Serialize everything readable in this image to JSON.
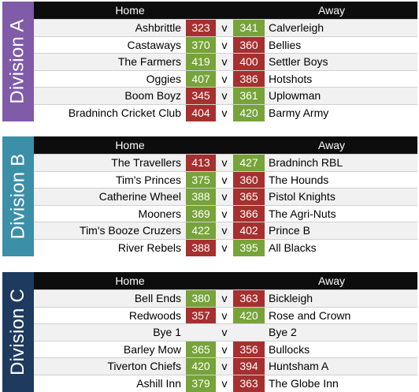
{
  "colors": {
    "win": "#77a33a",
    "lose": "#a5302f",
    "header_bg": "#0d0d0d"
  },
  "header": {
    "home": "Home",
    "away": "Away"
  },
  "separator": "v",
  "divisions": [
    {
      "name": "Division A",
      "color": "#7f5ba8",
      "matches": [
        {
          "home": "Ashbrittle",
          "home_score": "323",
          "away_score": "341",
          "away": "Calverleigh",
          "home_result": "lose",
          "away_result": "win"
        },
        {
          "home": "Castaways",
          "home_score": "370",
          "away_score": "360",
          "away": "Bellies",
          "home_result": "win",
          "away_result": "lose"
        },
        {
          "home": "The Farmers",
          "home_score": "419",
          "away_score": "400",
          "away": "Settler Boys",
          "home_result": "win",
          "away_result": "lose"
        },
        {
          "home": "Oggies",
          "home_score": "407",
          "away_score": "386",
          "away": "Hotshots",
          "home_result": "win",
          "away_result": "lose"
        },
        {
          "home": "Boom Boyz",
          "home_score": "345",
          "away_score": "361",
          "away": "Uplowman",
          "home_result": "lose",
          "away_result": "win"
        },
        {
          "home": "Bradninch Cricket Club",
          "home_score": "404",
          "away_score": "420",
          "away": "Barmy Army",
          "home_result": "lose",
          "away_result": "win"
        }
      ]
    },
    {
      "name": "Division B",
      "color": "#3b8fa7",
      "matches": [
        {
          "home": "The Travellers",
          "home_score": "413",
          "away_score": "427",
          "away": "Bradninch RBL",
          "home_result": "lose",
          "away_result": "win"
        },
        {
          "home": "Tim's Princes",
          "home_score": "375",
          "away_score": "360",
          "away": "The Hounds",
          "home_result": "win",
          "away_result": "lose"
        },
        {
          "home": "Catherine Wheel",
          "home_score": "388",
          "away_score": "365",
          "away": "Pistol Knights",
          "home_result": "win",
          "away_result": "lose"
        },
        {
          "home": "Mooners",
          "home_score": "369",
          "away_score": "366",
          "away": "The Agri-Nuts",
          "home_result": "win",
          "away_result": "lose"
        },
        {
          "home": "Tim's Booze Cruzers",
          "home_score": "422",
          "away_score": "402",
          "away": "Prince B",
          "home_result": "win",
          "away_result": "lose"
        },
        {
          "home": "River Rebels",
          "home_score": "388",
          "away_score": "395",
          "away": "All Blacks",
          "home_result": "lose",
          "away_result": "win"
        }
      ]
    },
    {
      "name": "Division C",
      "color": "#1e3a5f",
      "matches": [
        {
          "home": "Bell Ends",
          "home_score": "380",
          "away_score": "363",
          "away": "Bickleigh",
          "home_result": "win",
          "away_result": "lose"
        },
        {
          "home": "Redwoods",
          "home_score": "357",
          "away_score": "420",
          "away": "Rose and Crown",
          "home_result": "lose",
          "away_result": "win"
        },
        {
          "home": "Bye 1",
          "home_score": "",
          "away_score": "",
          "away": "Bye 2",
          "home_result": "none",
          "away_result": "none"
        },
        {
          "home": "Barley Mow",
          "home_score": "365",
          "away_score": "356",
          "away": "Bullocks",
          "home_result": "win",
          "away_result": "lose"
        },
        {
          "home": "Tiverton Chiefs",
          "home_score": "420",
          "away_score": "394",
          "away": "Huntsham A",
          "home_result": "win",
          "away_result": "lose"
        },
        {
          "home": "Ashill Inn",
          "home_score": "379",
          "away_score": "363",
          "away": "The Globe Inn",
          "home_result": "win",
          "away_result": "lose"
        }
      ]
    }
  ]
}
